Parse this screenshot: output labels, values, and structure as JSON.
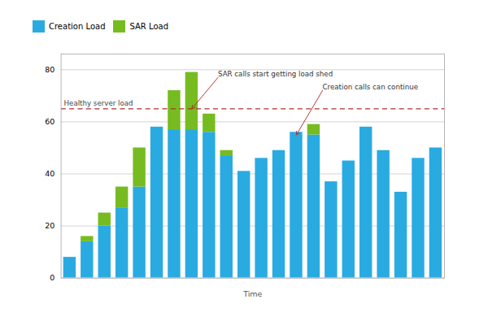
{
  "chart_data": {
    "type": "bar",
    "stacked": true,
    "xlabel": "Time",
    "categories": [
      null,
      null,
      null,
      null,
      null,
      null,
      null,
      null,
      null,
      null,
      null,
      null,
      null,
      null,
      null,
      null,
      null,
      null,
      null,
      null,
      null,
      null
    ],
    "series": [
      {
        "name": "Creation Load",
        "color": "#29ABE2",
        "values": [
          8,
          14,
          20,
          27,
          35,
          58,
          57,
          57,
          56,
          47,
          41,
          46,
          49,
          56,
          55,
          37,
          45,
          58,
          49,
          33,
          46,
          50
        ]
      },
      {
        "name": "SAR Load",
        "color": "#76BC21",
        "values": [
          0,
          2,
          5,
          8,
          15,
          0,
          15,
          22,
          7,
          2,
          0,
          0,
          0,
          0,
          4,
          0,
          0,
          0,
          0,
          0,
          0,
          0
        ]
      }
    ],
    "ylim": [
      0,
      86
    ],
    "yticks": [
      0,
      20,
      40,
      60,
      80
    ],
    "grid": true,
    "legend": "top",
    "tick_labels": "y",
    "reference_line": {
      "y": 65,
      "label": "Healthy server load",
      "color": "#B03030",
      "line_style": "dashed"
    },
    "annotations": [
      {
        "text": "SAR calls start getting load shed",
        "x": 7,
        "y": 65,
        "text_x": 8.5,
        "text_y": 77
      },
      {
        "text": "Creation calls can continue",
        "x": 13,
        "y": 55,
        "text_x": 14.5,
        "text_y": 72
      }
    ]
  }
}
